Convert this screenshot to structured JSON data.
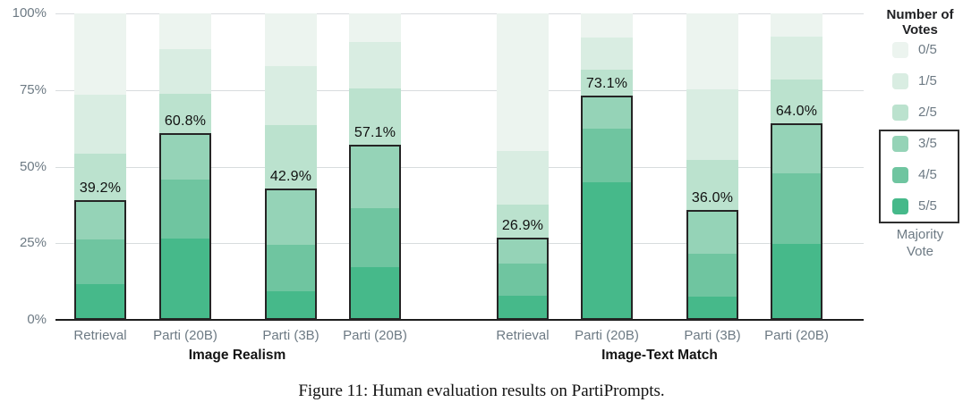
{
  "caption": "Figure 11: Human evaluation results on PartiPrompts.",
  "colors": {
    "background": "#ffffff",
    "gridline": "#d8dcde",
    "baseline": "#1d1d1d",
    "axis_text": "#6d7a84",
    "value_text": "#111111",
    "group_title_text": "#141414",
    "majority_outline": "#252525"
  },
  "chart_data": {
    "type": "bar",
    "stacked": true,
    "grid": true,
    "ylim": [
      0,
      100
    ],
    "ytick_labels": [
      "100%",
      "75%",
      "50%",
      "25%",
      "0%"
    ],
    "categories": [
      "Retrieval",
      "Parti (20B)",
      "Parti (3B)",
      "Parti (20B)",
      "Retrieval",
      "Parti (20B)",
      "Parti (3B)",
      "Parti (20B)"
    ],
    "groups": [
      {
        "label": "Image Realism"
      },
      {
        "label": "Image-Text Match"
      }
    ],
    "group_of_bar": [
      0,
      0,
      0,
      0,
      1,
      1,
      1,
      1
    ],
    "series": [
      {
        "name": "0/5",
        "color": "#ecf4ef",
        "values": [
          26.5,
          11.6,
          17.2,
          9.2,
          44.9,
          7.9,
          24.8,
          7.7
        ]
      },
      {
        "name": "1/5",
        "color": "#d9ede2",
        "values": [
          19.2,
          14.7,
          19.2,
          15.3,
          17.6,
          10.6,
          23.0,
          14.0
        ]
      },
      {
        "name": "2/5",
        "color": "#bbe2ce",
        "values": [
          15.1,
          12.9,
          20.7,
          18.4,
          10.6,
          8.4,
          16.2,
          14.3
        ]
      },
      {
        "name": "3/5",
        "color": "#95d3b7",
        "values": [
          12.9,
          15.1,
          18.4,
          20.7,
          8.4,
          10.6,
          14.3,
          16.2
        ]
      },
      {
        "name": "4/5",
        "color": "#6fc5a0",
        "values": [
          14.7,
          19.2,
          15.3,
          19.2,
          10.6,
          17.6,
          14.0,
          23.0
        ]
      },
      {
        "name": "5/5",
        "color": "#46b98a",
        "values": [
          11.6,
          26.5,
          9.2,
          17.2,
          7.9,
          44.9,
          7.7,
          24.8
        ]
      }
    ],
    "majority": {
      "labels": [
        "39.2%",
        "60.8%",
        "42.9%",
        "57.1%",
        "26.9%",
        "73.1%",
        "36.0%",
        "64.0%"
      ],
      "totals": [
        39.2,
        60.8,
        42.9,
        57.1,
        26.9,
        73.1,
        36.0,
        64.0
      ],
      "series_in_majority": [
        "3/5",
        "4/5",
        "5/5"
      ]
    },
    "legend": {
      "title_line1": "Number of",
      "title_line2": "Votes",
      "entries": [
        {
          "label": "0/5",
          "color": "#ecf4ef"
        },
        {
          "label": "1/5",
          "color": "#d9ede2"
        },
        {
          "label": "2/5",
          "color": "#bbe2ce"
        },
        {
          "label": "3/5",
          "color": "#95d3b7"
        },
        {
          "label": "4/5",
          "color": "#6fc5a0"
        },
        {
          "label": "5/5",
          "color": "#46b98a"
        }
      ],
      "majority_line1": "Majority",
      "majority_line2": "Vote"
    }
  }
}
